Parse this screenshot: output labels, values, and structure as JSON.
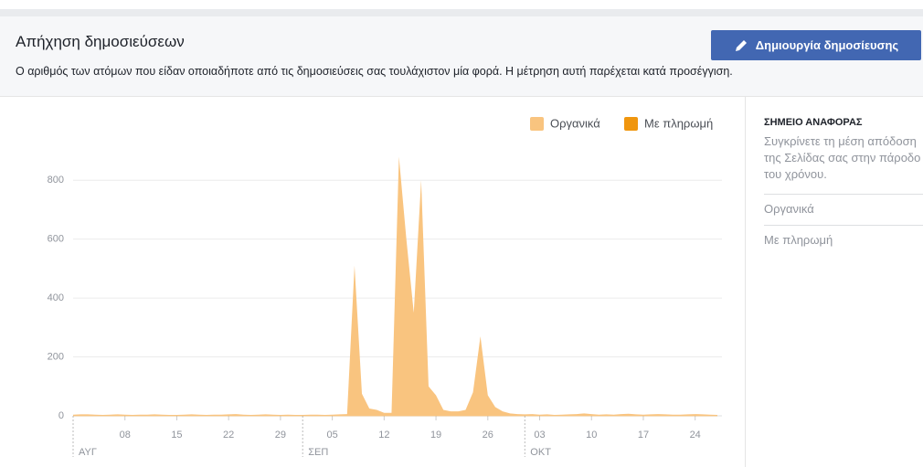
{
  "header": {
    "title": "Απήχηση δημοσιεύσεων",
    "button": "Δημιουργία δημοσίευσης",
    "description": "Ο αριθμός των ατόμων που είδαν οποιαδήποτε από τις δημοσιεύσεις σας τουλάχιστον μία φορά. Η μέτρηση αυτή παρέχεται κατά προσέγγιση."
  },
  "sidebar": {
    "heading": "ΣΗΜΕΙΟ ΑΝΑΦΟΡΑΣ",
    "text": "Συγκρίνετε τη μέση απόδοση της Σελίδας σας στην πάροδο του χρόνου.",
    "items": [
      "Οργανικά",
      "Με πληρωμή"
    ]
  },
  "chart_data": {
    "type": "area",
    "categories": [
      null,
      null,
      null,
      null,
      null,
      null,
      null,
      "08",
      null,
      null,
      null,
      null,
      null,
      null,
      "15",
      null,
      null,
      null,
      null,
      null,
      null,
      "22",
      null,
      null,
      null,
      null,
      null,
      null,
      "29",
      null,
      null,
      null,
      null,
      null,
      null,
      "05",
      null,
      null,
      null,
      null,
      null,
      null,
      "12",
      null,
      null,
      null,
      null,
      null,
      null,
      "19",
      null,
      null,
      null,
      null,
      null,
      null,
      "26",
      null,
      null,
      null,
      null,
      null,
      null,
      "03",
      null,
      null,
      null,
      null,
      null,
      null,
      "10",
      null,
      null,
      null,
      null,
      null,
      null,
      "17",
      null,
      null,
      null,
      null,
      null,
      null,
      "24",
      null,
      null,
      null
    ],
    "months": [
      {
        "label": "ΑΥΓ",
        "start": 0
      },
      {
        "label": "ΣΕΠ",
        "start": 31
      },
      {
        "label": "ΟΚΤ",
        "start": 61
      }
    ],
    "series": [
      {
        "name": "Οργανικά",
        "color": "#f9c47f",
        "values": [
          4,
          5,
          5,
          4,
          3,
          4,
          5,
          4,
          3,
          4,
          4,
          5,
          4,
          3,
          3,
          4,
          5,
          4,
          3,
          4,
          4,
          5,
          6,
          4,
          3,
          4,
          5,
          4,
          3,
          4,
          3,
          3,
          4,
          4,
          3,
          4,
          5,
          6,
          510,
          75,
          25,
          20,
          10,
          10,
          880,
          600,
          350,
          800,
          100,
          70,
          20,
          15,
          15,
          20,
          80,
          270,
          70,
          30,
          15,
          8,
          6,
          5,
          6,
          4,
          5,
          3,
          4,
          5,
          6,
          8,
          6,
          4,
          5,
          4,
          6,
          7,
          5,
          4,
          5,
          6,
          5,
          4,
          4,
          5,
          6,
          5,
          4,
          3
        ]
      },
      {
        "name": "Με πληρωμή",
        "color": "#f0960e",
        "values": [
          0,
          0,
          0,
          0,
          0,
          0,
          0,
          0,
          0,
          0,
          0,
          0,
          0,
          0,
          0,
          0,
          0,
          0,
          0,
          0,
          0,
          0,
          0,
          0,
          0,
          0,
          0,
          0,
          0,
          0,
          0,
          0,
          0,
          0,
          0,
          0,
          0,
          0,
          0,
          0,
          0,
          0,
          0,
          0,
          0,
          0,
          0,
          0,
          0,
          0,
          0,
          0,
          0,
          0,
          0,
          0,
          0,
          0,
          0,
          0,
          0,
          0,
          0,
          0,
          0,
          0,
          0,
          0,
          0,
          0,
          0,
          0,
          0,
          0,
          0,
          0,
          0,
          0,
          0,
          0,
          0,
          0,
          0,
          0,
          0,
          0,
          0,
          0
        ]
      }
    ],
    "ylim": [
      0,
      900
    ],
    "yticks": [
      0,
      200,
      400,
      600,
      800
    ],
    "grid": true,
    "legend": "top-right"
  }
}
